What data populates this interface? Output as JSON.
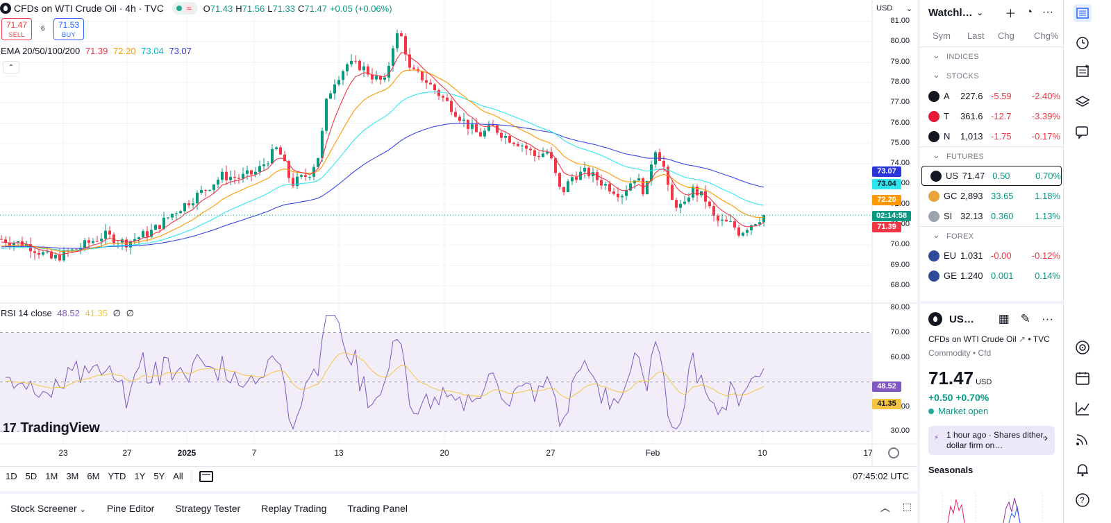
{
  "header": {
    "title": "CFDs on WTI Crude Oil · 4h · TVC",
    "open": "71.43",
    "high": "71.56",
    "low": "71.33",
    "close": "71.47",
    "change": "+0.05 (+0.06%)"
  },
  "trade": {
    "sell_price": "71.47",
    "sell_label": "SELL",
    "spread": "6",
    "buy_price": "71.53",
    "buy_label": "BUY"
  },
  "ema": {
    "label": "EMA 20/50/100/200",
    "v20": "71.39",
    "v50": "72.20",
    "v100": "73.04",
    "v200": "73.07",
    "colors": {
      "e20": "#f23645",
      "e50": "#ff9800",
      "e100": "#2ee6f0",
      "e200": "#3846e0"
    }
  },
  "rsi": {
    "label": "RSI 14 close",
    "value": "48.52",
    "ma": "41.35",
    "extra1": "∅",
    "extra2": "∅"
  },
  "price_axis": [
    "81.00",
    "80.00",
    "79.00",
    "78.00",
    "77.00",
    "76.00",
    "75.00",
    "74.00",
    "73.00",
    "72.00",
    "71.00",
    "70.00",
    "69.00",
    "68.00"
  ],
  "rsi_axis": [
    "80.00",
    "70.00",
    "60.00",
    "40.00",
    "30.00"
  ],
  "tags": {
    "ema200": "73.07",
    "ema100": "73.04",
    "ema50": "72.20",
    "countdown": "02:14:58",
    "ema20": "71.39",
    "rsi": "48.52",
    "rsi_ma": "41.35"
  },
  "currency": "USD",
  "time_axis": [
    "23",
    "27",
    "2025",
    "7",
    "13",
    "20",
    "27",
    "Feb",
    "10",
    "17"
  ],
  "logo_text": "TradingView",
  "ranges": [
    "1D",
    "5D",
    "1M",
    "3M",
    "6M",
    "YTD",
    "1Y",
    "5Y",
    "All"
  ],
  "clock": "07:45:02 UTC",
  "bottom_tabs": [
    "Stock Screener",
    "Pine Editor",
    "Strategy Tester",
    "Replay Trading",
    "Trading Panel"
  ],
  "watchlist": {
    "title": "Watchl…",
    "cols": {
      "sym": "Sym",
      "last": "Last",
      "chg": "Chg",
      "pct": "Chg%"
    },
    "sections": {
      "indices": "INDICES",
      "stocks": "STOCKS",
      "futures": "FUTURES",
      "forex": "FOREX"
    },
    "stocks": [
      {
        "sym": "A",
        "last": "227.6",
        "chg": "-5.59",
        "pct": "-2.40%",
        "dir": "dn",
        "icon": "#131722"
      },
      {
        "sym": "T",
        "last": "361.6",
        "chg": "-12.7",
        "pct": "-3.39%",
        "dir": "dn",
        "icon": "#e31937"
      },
      {
        "sym": "N",
        "last": "1,013",
        "chg": "-1.75",
        "pct": "-0.17%",
        "dir": "dn",
        "icon": "#131722"
      }
    ],
    "futures": [
      {
        "sym": "US",
        "last": "71.47",
        "chg": "0.50",
        "pct": "0.70%",
        "dir": "up",
        "icon": "#131722"
      },
      {
        "sym": "GC",
        "last": "2,893",
        "chg": "33.65",
        "pct": "1.18%",
        "dir": "up",
        "icon": "#e8a33a"
      },
      {
        "sym": "SI",
        "last": "32.13",
        "chg": "0.360",
        "pct": "1.13%",
        "dir": "up",
        "icon": "#9ca3ad"
      }
    ],
    "forex": [
      {
        "sym": "EU",
        "last": "1.031",
        "chg": "-0.00",
        "pct": "-0.12%",
        "dir": "dn",
        "icon": "#2e4a9a"
      },
      {
        "sym": "GE",
        "last": "1.240",
        "chg": "0.001",
        "pct": "0.14%",
        "dir": "up",
        "icon": "#2e4a9a"
      }
    ]
  },
  "details": {
    "symbol": "US…",
    "name": "CFDs on WTI Crude Oil",
    "source": "TVC",
    "type": "Commodity • Cfd",
    "price": "71.47",
    "currency": "USD",
    "change": "+0.50  +0.70%",
    "market": "Market open",
    "news": "1 hour ago · Shares dither, dollar firm on…",
    "seasonals": "Seasonals"
  }
}
